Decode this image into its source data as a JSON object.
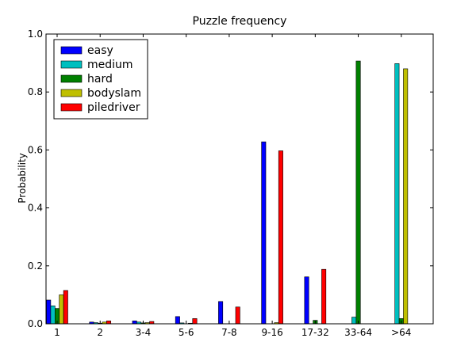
{
  "chart_data": {
    "type": "bar",
    "title": "Puzzle frequency",
    "xlabel": "",
    "ylabel": "Probability",
    "ylim": [
      0,
      1.0
    ],
    "yticks": [
      "0.0",
      "0.2",
      "0.4",
      "0.6",
      "0.8",
      "1.0"
    ],
    "grid": false,
    "legend_position": "top-left",
    "categories": [
      "1",
      "2",
      "3-4",
      "5-6",
      "7-8",
      "9-16",
      "17-32",
      "33-64",
      ">64"
    ],
    "series": [
      {
        "name": "easy",
        "color": "#0000ff",
        "values": [
          0.082,
          0.006,
          0.01,
          0.025,
          0.077,
          0.628,
          0.162,
          0.0,
          0.0
        ]
      },
      {
        "name": "medium",
        "color": "#00bfbf",
        "values": [
          0.062,
          0.004,
          0.006,
          0.003,
          0.0,
          0.0,
          0.0,
          0.023,
          0.898
        ]
      },
      {
        "name": "hard",
        "color": "#008000",
        "values": [
          0.053,
          0.002,
          0.003,
          0.0,
          0.0,
          0.0,
          0.012,
          0.907,
          0.018
        ]
      },
      {
        "name": "bodyslam",
        "color": "#bfbf00",
        "values": [
          0.1,
          0.006,
          0.004,
          0.002,
          0.0,
          0.004,
          0.0,
          0.0,
          0.88
        ]
      },
      {
        "name": "piledriver",
        "color": "#ff0000",
        "values": [
          0.115,
          0.01,
          0.008,
          0.018,
          0.058,
          0.597,
          0.188,
          0.0,
          0.0
        ]
      }
    ]
  }
}
